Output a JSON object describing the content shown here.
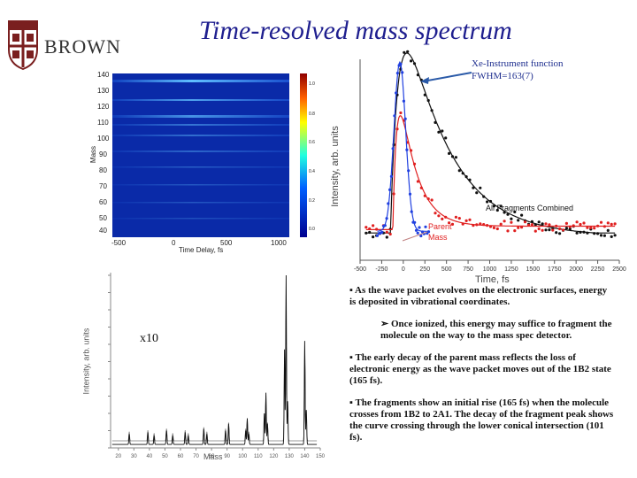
{
  "slide": {
    "title": "Time-resolved mass spectrum",
    "logo_text": "BROWN",
    "colors": {
      "title": "#1f1f8f",
      "fragments": "#111111",
      "parent": "#e02020",
      "instrument": "#2040e0"
    }
  },
  "heatmap": {
    "ylabel": "Mass",
    "xlabel": "Time Delay, fs",
    "y_ticks": [
      "140",
      "130",
      "120",
      "110",
      "100",
      "90",
      "80",
      "70",
      "60",
      "50",
      "40"
    ],
    "x_ticks": [
      "-500",
      "0",
      "500",
      "1000"
    ],
    "colorbar_ticks": [
      "1.0",
      "0.8",
      "0.6",
      "0.4",
      "0.2",
      "0.0"
    ]
  },
  "transient": {
    "ylabel": "Intensity, arb. units",
    "xlabel": "Time, fs",
    "x_ticks": [
      "-500",
      "-250",
      "0",
      "250",
      "500",
      "750",
      "1000",
      "1250",
      "1500",
      "1750",
      "2000",
      "2250",
      "2500"
    ],
    "annotation_xe_line1": "Xe-Instrument function",
    "annotation_xe_line2": "FWHM=163(7)",
    "annotation_fragments": "All Fragments Combined",
    "annotation_parent_line1": "Parent",
    "annotation_parent_line2": "Mass"
  },
  "spectrum": {
    "ylabel": "Intensity, arb. units",
    "xlabel": "Mass",
    "scale_label": "x10",
    "x_ticks": [
      "20",
      "30",
      "40",
      "50",
      "60",
      "70",
      "80",
      "90",
      "100",
      "110",
      "120",
      "130",
      "140",
      "150"
    ]
  },
  "bullets": {
    "b1": "As the wave packet evolves on the electronic surfaces, energy is deposited in vibrational coordinates.",
    "b1_sub": "Once ionized, this energy may suffice to fragment the molecule on the way to the mass spec detector.",
    "b2": "The early decay of the parent mass reflects the loss of electronic energy as the wave packet moves out of the 1B2 state (165 fs).",
    "b3": "The fragments show an initial rise (165 fs) when the molecule crosses from 1B2 to 2A1. The decay of the fragment peak shows the curve crossing through the lower conical intersection (101 fs)."
  }
}
